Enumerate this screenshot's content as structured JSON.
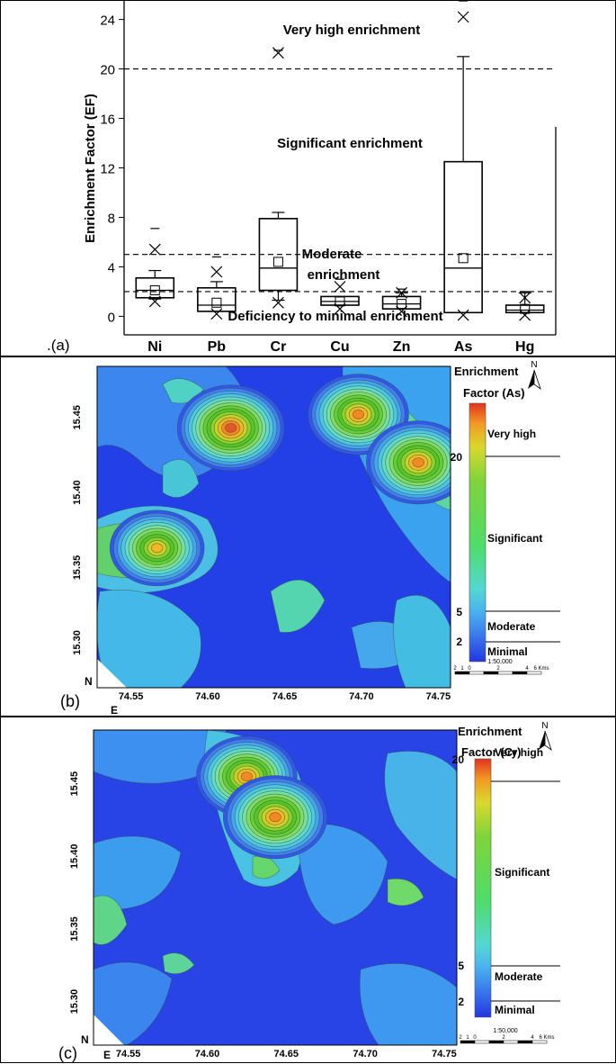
{
  "chart_data": [
    {
      "type": "box",
      "panel_label": ".(a)",
      "ylabel": "Enrichment Factor (EF)",
      "ylim": [
        -1.5,
        25.5
      ],
      "yticks": [
        0,
        4,
        8,
        12,
        16,
        20,
        24
      ],
      "categories": [
        "Ni",
        "Pb",
        "Cr",
        "Cu",
        "Zn",
        "As",
        "Hg"
      ],
      "boxes": [
        {
          "name": "Ni",
          "whisker_low": 1.4,
          "q1": 1.5,
          "median": 2.1,
          "q3": 3.1,
          "whisker_high": 3.7,
          "mean": 2.1,
          "max_marker": 7.1,
          "min_x": 1.2,
          "max_x": 5.4
        },
        {
          "name": "Pb",
          "whisker_low": 0.4,
          "q1": 0.4,
          "median": 0.9,
          "q3": 2.3,
          "whisker_high": 2.8,
          "mean": 1.1,
          "max_marker": 4.8,
          "min_x": 0.2,
          "max_x": 3.6
        },
        {
          "name": "Cr",
          "whisker_low": 1.3,
          "q1": 2.1,
          "median": 3.9,
          "q3": 7.9,
          "whisker_high": 8.4,
          "mean": 4.4,
          "max_marker": 21.5,
          "min_x": 1.1,
          "max_x": 21.3
        },
        {
          "name": "Cu",
          "whisker_low": 0.9,
          "q1": 0.9,
          "median": 1.2,
          "q3": 1.6,
          "whisker_high": 1.6,
          "mean": 1.2,
          "max_marker": 3.0,
          "min_x": 0.6,
          "max_x": 2.4
        },
        {
          "name": "Zn",
          "whisker_low": 0.6,
          "q1": 0.6,
          "median": 1.0,
          "q3": 1.6,
          "whisker_high": 1.9,
          "mean": 1.0,
          "max_marker": 2.2,
          "min_x": 0.4,
          "max_x": 1.9
        },
        {
          "name": "As",
          "whisker_low": 0.3,
          "q1": 0.3,
          "median": 3.9,
          "q3": 12.5,
          "whisker_high": 21.0,
          "mean": 4.7,
          "max_marker": 25.5,
          "min_x": 0.1,
          "max_x": 24.2
        },
        {
          "name": "Hg",
          "whisker_low": 0.3,
          "q1": 0.3,
          "median": 0.5,
          "q3": 0.9,
          "whisker_high": 1.9,
          "mean": 0.6,
          "max_marker": 2.0,
          "min_x": 0.1,
          "max_x": 1.5
        }
      ],
      "thresholds": [
        20,
        5,
        2
      ],
      "annotations": [
        "Very high enrichment",
        "Significant enrichment",
        "Moderate",
        "enrichment",
        "Deficiency to minimal enrichment"
      ]
    },
    {
      "type": "heatmap",
      "panel_label": "(b)",
      "legend_title_line1": "Enrichment",
      "legend_title_line2": "Factor (As)",
      "x_ticks": [
        "74.55",
        "74.60",
        "74.65",
        "74.70",
        "74.75"
      ],
      "y_ticks": [
        "15.45",
        "15.40",
        "15.35",
        "15.30"
      ],
      "north_left": "N",
      "east_bottom": "E",
      "north_arrow": "N",
      "class_labels": [
        "Very high",
        "Significant",
        "Moderate",
        "Minimal"
      ],
      "class_values": [
        "20",
        "5",
        "2"
      ],
      "scale_text": "1:50,000",
      "scale_ticks": [
        "2",
        "1",
        "0",
        "2",
        "4",
        "6 Kms"
      ],
      "hotspots": [
        {
          "lon": 74.615,
          "lat": 15.443,
          "peak": 24
        },
        {
          "lon": 74.567,
          "lat": 15.363,
          "peak": 20
        },
        {
          "lon": 74.698,
          "lat": 15.452,
          "peak": 22
        },
        {
          "lon": 74.737,
          "lat": 15.42,
          "peak": 23
        }
      ]
    },
    {
      "type": "heatmap",
      "panel_label": "(c)",
      "legend_title_line1": "Enrichment",
      "legend_title_line2": "Factor (Cr)",
      "x_ticks": [
        "74.55",
        "74.60",
        "74.65",
        "74.70",
        "74.75"
      ],
      "y_ticks": [
        "15.45",
        "15.40",
        "15.35",
        "15.30"
      ],
      "north_left": "N",
      "east_bottom": "E",
      "north_arrow": "N",
      "class_labels": [
        "Very high",
        "Significant",
        "Moderate",
        "Minimal"
      ],
      "class_values": [
        "20",
        "5",
        "2"
      ],
      "scale_text": "1:50,000",
      "scale_ticks": [
        "2",
        "1",
        "0",
        "2",
        "4",
        "6 Kms"
      ],
      "hotspots": [
        {
          "lon": 74.625,
          "lat": 15.455,
          "peak": 22
        },
        {
          "lon": 74.643,
          "lat": 15.427,
          "peak": 23
        }
      ]
    }
  ],
  "colors": {
    "very_high": "#e23b1c",
    "significant": "#5fd12a",
    "moderate": "#4fc4e8",
    "minimal": "#1f3ee0"
  }
}
